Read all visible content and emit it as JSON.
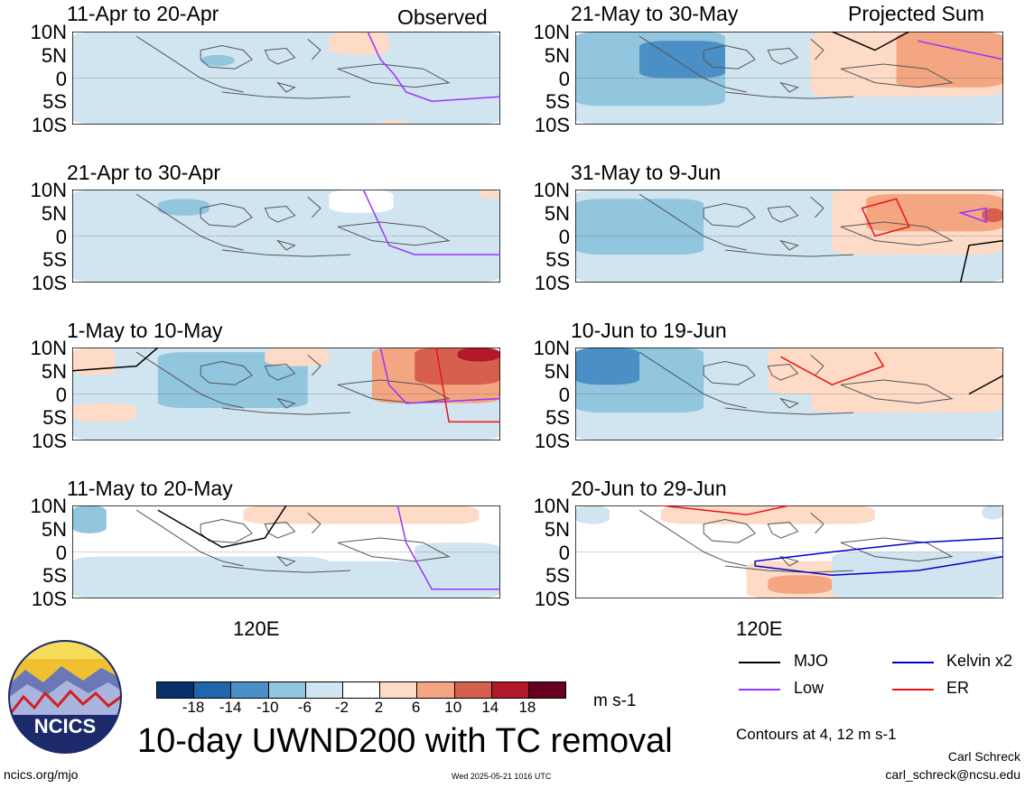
{
  "panels": [
    {
      "title": "11-Apr to 20-Apr",
      "tag": "Observed"
    },
    {
      "title": "21-Apr to 30-Apr",
      "tag": ""
    },
    {
      "title": "1-May to 10-May",
      "tag": ""
    },
    {
      "title": "11-May to 20-May",
      "tag": ""
    },
    {
      "title": "21-May to 30-May",
      "tag": "Projected Sum"
    },
    {
      "title": "31-May to 9-Jun",
      "tag": ""
    },
    {
      "title": "10-Jun to 19-Jun",
      "tag": ""
    },
    {
      "title": "20-Jun to 29-Jun",
      "tag": ""
    }
  ],
  "axis": {
    "lat_ticks": [
      "10N",
      "5N",
      "0",
      "5S",
      "10S"
    ],
    "lon_label": "120E"
  },
  "colorbar": {
    "ticks": [
      "-18",
      "-14",
      "-10",
      "-6",
      "-2",
      "2",
      "6",
      "10",
      "14",
      "18"
    ],
    "unit": "m s-1",
    "colors": [
      "#08306b",
      "#2166ac",
      "#4a90c6",
      "#92c5de",
      "#d1e5f0",
      "#ffffff",
      "#fddbc7",
      "#f4a582",
      "#d6604d",
      "#b2182b",
      "#67001f"
    ]
  },
  "legend": {
    "items": [
      {
        "label": "MJO",
        "color": "#000000"
      },
      {
        "label": "Kelvin x2",
        "color": "#0000cc"
      },
      {
        "label": "Low",
        "color": "#9933ff"
      },
      {
        "label": "ER",
        "color": "#ee1111"
      }
    ],
    "note": "Contours at 4, 12 m s-1"
  },
  "footer": {
    "title": "10-day UWND200 with TC removal",
    "logo_text": "NCICS",
    "url": "ncics.org/mjo",
    "timestamp": "Wed 2025-05-21 1016 UTC",
    "author": "Carl Schreck",
    "email": "carl_schreck@ncsu.edu"
  }
}
